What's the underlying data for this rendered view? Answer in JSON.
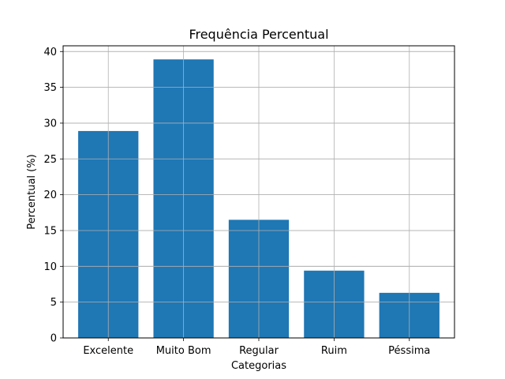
{
  "chart_data": {
    "type": "bar",
    "title": "Frequência Percentual",
    "xlabel": "Categorias",
    "ylabel": "Percentual (%)",
    "categories": [
      "Excelente",
      "Muito Bom",
      "Regular",
      "Ruim",
      "Péssima"
    ],
    "values": [
      28.9,
      38.9,
      16.5,
      9.4,
      6.3
    ],
    "ylim": [
      0,
      40.8
    ],
    "yticks": [
      0,
      5,
      10,
      15,
      20,
      25,
      30,
      35,
      40
    ],
    "grid": true,
    "bar_color": "#1f77b4",
    "grid_color": "#b0b0b0"
  }
}
